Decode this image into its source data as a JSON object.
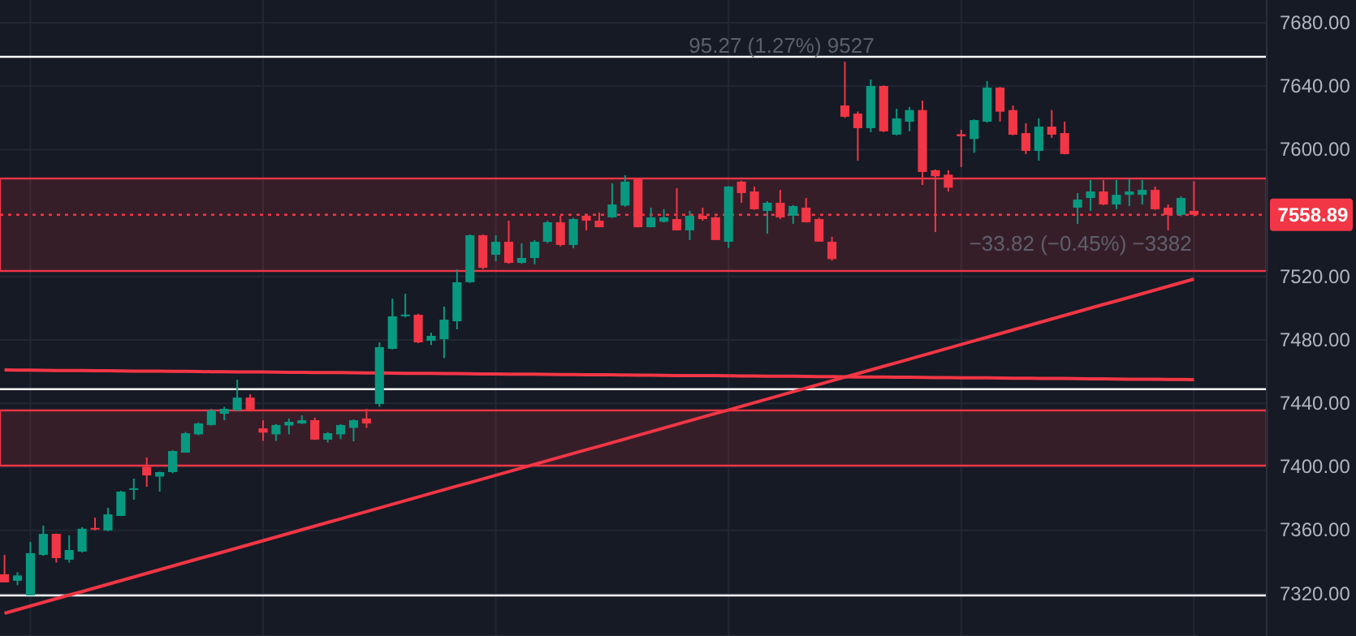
{
  "chart_data": {
    "type": "candlestick",
    "categories": [
      null,
      null,
      null,
      null,
      null,
      null,
      null,
      null,
      null,
      null,
      null,
      null,
      null,
      null,
      null,
      null,
      null,
      null,
      null,
      null,
      null,
      null,
      null,
      null,
      null,
      null,
      null,
      null,
      null,
      null,
      null,
      null,
      null,
      null,
      null,
      null,
      null,
      null,
      null,
      null,
      null,
      null,
      null,
      null,
      null,
      null,
      null,
      null,
      null,
      null,
      null,
      null,
      null,
      null,
      null,
      null,
      null,
      null,
      null,
      null,
      null,
      null,
      null,
      null,
      null,
      null,
      null,
      null,
      null,
      null,
      null,
      null,
      null,
      null,
      null,
      null,
      null,
      null,
      null,
      null,
      null,
      null,
      null,
      null,
      null,
      null,
      null,
      null,
      null,
      null,
      null,
      null,
      null
    ],
    "ohlc": [
      [
        7332.3,
        7344.5,
        7327.2,
        7327.2
      ],
      [
        7328.2,
        7333.6,
        7325.4,
        7331.6
      ],
      [
        7319.0,
        7352.7,
        7319.0,
        7345.6
      ],
      [
        7344.5,
        7363.0,
        7344.0,
        7357.8
      ],
      [
        7357.8,
        7358.0,
        7339.7,
        7342.5
      ],
      [
        7341.5,
        7356.8,
        7339.7,
        7347.6
      ],
      [
        7346.6,
        7362.0,
        7346.0,
        7361.0
      ],
      [
        7361.5,
        7368.0,
        7360.0,
        7360.5
      ],
      [
        7359.9,
        7374.2,
        7359.5,
        7370.1
      ],
      [
        7369.1,
        7385.0,
        7369.0,
        7384.4
      ],
      [
        7386.0,
        7392.6,
        7379.3,
        7386.5
      ],
      [
        7400.1,
        7405.9,
        7387.5,
        7394.6
      ],
      [
        7393.9,
        7397.0,
        7384.4,
        7396.7
      ],
      [
        7396.7,
        7410.5,
        7396.0,
        7410.0
      ],
      [
        7409.0,
        7422.0,
        7409.0,
        7421.2
      ],
      [
        7420.5,
        7428.0,
        7420.0,
        7427.4
      ],
      [
        7426.4,
        7436.6,
        7426.0,
        7435.6
      ],
      [
        7433.5,
        7437.9,
        7429.4,
        7436.6
      ],
      [
        7435.6,
        7455.0,
        7435.0,
        7443.7
      ],
      [
        7443.7,
        7445.8,
        7435.0,
        7435.6
      ],
      [
        7424.3,
        7429.4,
        7416.4,
        7421.6
      ],
      [
        7420.5,
        7427.0,
        7416.4,
        7426.4
      ],
      [
        7426.1,
        7430.5,
        7420.5,
        7428.4
      ],
      [
        7427.4,
        7432.5,
        7427.0,
        7429.4
      ],
      [
        7429.4,
        7431.0,
        7417.0,
        7417.2
      ],
      [
        7417.2,
        7422.0,
        7415.4,
        7421.2
      ],
      [
        7420.5,
        7427.0,
        7417.5,
        7426.4
      ],
      [
        7424.6,
        7430.0,
        7416.1,
        7429.4
      ],
      [
        7430.5,
        7436.6,
        7424.6,
        7427.4
      ],
      [
        7439.6,
        7478.5,
        7437.9,
        7475.5
      ],
      [
        7474.4,
        7506.1,
        7474.0,
        7494.9
      ],
      [
        7495.5,
        7509.2,
        7494.2,
        7496.0
      ],
      [
        7495.9,
        7496.5,
        7478.0,
        7478.5
      ],
      [
        7479.5,
        7484.6,
        7476.8,
        7482.6
      ],
      [
        7480.5,
        7501.0,
        7468.6,
        7492.8
      ],
      [
        7491.8,
        7524.5,
        7486.7,
        7516.4
      ],
      [
        7516.4,
        7546.5,
        7516.0,
        7546.0
      ],
      [
        7546.0,
        7546.5,
        7524.5,
        7525.5
      ],
      [
        7533.7,
        7546.0,
        7529.6,
        7541.9
      ],
      [
        7541.9,
        7555.2,
        7528.0,
        7528.6
      ],
      [
        7528.6,
        7540.9,
        7528.0,
        7531.7
      ],
      [
        7531.7,
        7543.0,
        7527.6,
        7541.9
      ],
      [
        7541.9,
        7555.2,
        7541.0,
        7554.2
      ],
      [
        7554.2,
        7558.3,
        7539.0,
        7539.9
      ],
      [
        7539.9,
        7557.0,
        7537.8,
        7556.2
      ],
      [
        7558.3,
        7559.0,
        7549.1,
        7555.2
      ],
      [
        7555.2,
        7560.3,
        7551.0,
        7551.1
      ],
      [
        7557.3,
        7578.7,
        7557.0,
        7565.4
      ],
      [
        7564.7,
        7583.8,
        7564.0,
        7579.8
      ],
      [
        7581.5,
        7582.0,
        7551.0,
        7551.1
      ],
      [
        7551.1,
        7563.4,
        7551.0,
        7557.3
      ],
      [
        7554.5,
        7562.4,
        7554.0,
        7557.3
      ],
      [
        7556.2,
        7575.7,
        7549.0,
        7549.1
      ],
      [
        7549.1,
        7561.4,
        7543.0,
        7558.3
      ],
      [
        7558.3,
        7563.4,
        7555.2,
        7556.2
      ],
      [
        7557.3,
        7558.0,
        7543.0,
        7543.0
      ],
      [
        7541.9,
        7577.0,
        7538.0,
        7576.7
      ],
      [
        7579.8,
        7580.5,
        7566.5,
        7572.6
      ],
      [
        7573.6,
        7576.7,
        7562.0,
        7562.4
      ],
      [
        7561.4,
        7567.5,
        7547.0,
        7566.5
      ],
      [
        7566.5,
        7574.6,
        7556.2,
        7557.3
      ],
      [
        7558.3,
        7565.0,
        7553.2,
        7564.4
      ],
      [
        7563.4,
        7569.5,
        7554.0,
        7554.2
      ],
      [
        7556.2,
        7557.0,
        7542.0,
        7542.0
      ],
      [
        7541.9,
        7545.0,
        7530.0,
        7531.0
      ],
      [
        7627.8,
        7655.4,
        7620.0,
        7620.7
      ],
      [
        7622.7,
        7624.0,
        7593.0,
        7613.5
      ],
      [
        7613.5,
        7644.2,
        7611.0,
        7640.1
      ],
      [
        7640.1,
        7640.5,
        7611.0,
        7611.5
      ],
      [
        7609.4,
        7625.8,
        7609.0,
        7619.7
      ],
      [
        7617.6,
        7626.8,
        7611.5,
        7624.9
      ],
      [
        7624.9,
        7630.9,
        7577.7,
        7585.9
      ],
      [
        7587.0,
        7587.5,
        7548.0,
        7583.2
      ],
      [
        7584.2,
        7587.0,
        7573.6,
        7576.0
      ],
      [
        7609.7,
        7612.5,
        7589.0,
        7608.4
      ],
      [
        7606.7,
        7619.0,
        7598.0,
        7618.6
      ],
      [
        7617.6,
        7643.2,
        7617.0,
        7639.1
      ],
      [
        7639.1,
        7639.5,
        7617.6,
        7623.9
      ],
      [
        7624.9,
        7627.8,
        7609.0,
        7609.4
      ],
      [
        7610.4,
        7616.6,
        7597.2,
        7599.2
      ],
      [
        7599.2,
        7619.7,
        7593.0,
        7614.5
      ],
      [
        7614.5,
        7624.9,
        7607.4,
        7609.4
      ],
      [
        7610.4,
        7617.6,
        7597.0,
        7597.2
      ],
      [
        7563.4,
        7572.6,
        7553.2,
        7568.5
      ],
      [
        7569.5,
        7580.8,
        7561.4,
        7573.6
      ],
      [
        7573.6,
        7580.8,
        7565.0,
        7565.4
      ],
      [
        7565.4,
        7580.8,
        7562.4,
        7571.5
      ],
      [
        7571.5,
        7581.8,
        7564.4,
        7573.6
      ],
      [
        7571.5,
        7580.8,
        7565.4,
        7574.6
      ],
      [
        7574.6,
        7576.7,
        7562.0,
        7562.4
      ],
      [
        7563.4,
        7565.4,
        7549.1,
        7558.9
      ],
      [
        7558.9,
        7570.5,
        7558.0,
        7569.5
      ],
      [
        7561.4,
        7580.0,
        7558.0,
        7558.89
      ]
    ],
    "colors": [
      "#f23645",
      "#089981",
      "#089981",
      "#089981",
      "#f23645",
      "#089981",
      "#089981",
      "#f23645",
      "#089981",
      "#089981",
      "#089981",
      "#f23645",
      "#089981",
      "#089981",
      "#089981",
      "#089981",
      "#089981",
      "#089981",
      "#089981",
      "#f23645",
      "#f23645",
      "#089981",
      "#089981",
      "#089981",
      "#f23645",
      "#089981",
      "#089981",
      "#089981",
      "#f23645",
      "#089981",
      "#089981",
      "#089981",
      "#f23645",
      "#089981",
      "#089981",
      "#089981",
      "#089981",
      "#f23645",
      "#089981",
      "#f23645",
      "#089981",
      "#089981",
      "#089981",
      "#f23645",
      "#089981",
      "#f23645",
      "#f23645",
      "#089981",
      "#089981",
      "#f23645",
      "#089981",
      "#089981",
      "#f23645",
      "#089981",
      "#f23645",
      "#f23645",
      "#089981",
      "#f23645",
      "#f23645",
      "#089981",
      "#f23645",
      "#089981",
      "#f23645",
      "#f23645",
      "#f23645",
      "#f23645",
      "#f23645",
      "#089981",
      "#f23645",
      "#089981",
      "#089981",
      "#f23645",
      "#f23645",
      "#f23645",
      "#f23645",
      "#089981",
      "#089981",
      "#f23645",
      "#f23645",
      "#f23645",
      "#089981",
      "#f23645",
      "#f23645",
      "#089981",
      "#089981",
      "#f23645",
      "#089981",
      "#089981",
      "#089981",
      "#f23645",
      "#f23645",
      "#089981",
      "#f23645"
    ],
    "series": [
      {
        "type": "line",
        "color": "#f23645",
        "values": [
          7307.7,
          7310.0,
          7312.3,
          7314.6,
          7316.9,
          7319.2,
          7321.4,
          7323.7,
          7326.0,
          7328.3,
          7330.6,
          7332.9,
          7335.2,
          7337.5,
          7339.8,
          7342.1,
          7344.3,
          7346.6,
          7348.9,
          7351.2,
          7353.5,
          7355.8,
          7358.1,
          7360.4,
          7362.7,
          7365.0,
          7367.2,
          7369.5,
          7371.8,
          7374.1,
          7376.4,
          7378.7,
          7381.0,
          7383.3,
          7385.6,
          7387.9,
          7390.1,
          7392.4,
          7394.7,
          7397.0,
          7399.3,
          7401.6,
          7403.9,
          7406.2,
          7408.5,
          7410.8,
          7413.0,
          7415.3,
          7417.6,
          7419.9,
          7422.2,
          7424.5,
          7426.8,
          7429.1,
          7431.4,
          7433.7,
          7435.9,
          7438.2,
          7440.5,
          7442.8,
          7445.1,
          7447.4,
          7449.7,
          7452.0,
          7454.3,
          7456.6,
          7458.8,
          7461.1,
          7463.4,
          7465.7,
          7468.0,
          7470.3,
          7472.6,
          7474.9,
          7477.2,
          7479.5,
          7481.7,
          7484.0,
          7486.3,
          7488.6,
          7490.9,
          7493.2,
          7495.5,
          7497.8,
          7500.1,
          7502.4,
          7504.6,
          7506.9,
          7509.2,
          7511.5,
          7513.8,
          7516.1,
          7518.4
        ]
      },
      {
        "type": "line",
        "color": "#f23645",
        "values": [
          7461.1,
          7461.0,
          7461.0,
          7460.9,
          7460.8,
          7460.8,
          7460.7,
          7460.6,
          7460.6,
          7460.5,
          7460.4,
          7460.4,
          7460.3,
          7460.2,
          7460.2,
          7460.1,
          7460.0,
          7460.0,
          7459.9,
          7459.8,
          7459.8,
          7459.7,
          7459.6,
          7459.6,
          7459.5,
          7459.4,
          7459.4,
          7459.3,
          7459.2,
          7459.2,
          7459.1,
          7459.0,
          7459.0,
          7458.9,
          7458.8,
          7458.8,
          7458.7,
          7458.6,
          7458.6,
          7458.5,
          7458.4,
          7458.4,
          7458.3,
          7458.2,
          7458.2,
          7458.1,
          7458.0,
          7458.0,
          7457.9,
          7457.8,
          7457.8,
          7457.7,
          7457.6,
          7457.6,
          7457.5,
          7457.5,
          7457.4,
          7457.3,
          7457.3,
          7457.2,
          7457.1,
          7457.1,
          7457.0,
          7456.9,
          7456.9,
          7456.8,
          7456.7,
          7456.7,
          7456.6,
          7456.5,
          7456.5,
          7456.4,
          7456.3,
          7456.3,
          7456.2,
          7456.1,
          7456.1,
          7456.0,
          7455.9,
          7455.9,
          7455.8,
          7455.7,
          7455.7,
          7455.6,
          7455.5,
          7455.5,
          7455.4,
          7455.3,
          7455.3,
          7455.2,
          7455.1,
          7455.1,
          7455.0
        ]
      }
    ],
    "ylim": [
      7293.4,
      7694.3
    ],
    "yticks": [
      {
        "value": 7320,
        "label": "7320.00"
      },
      {
        "value": 7360,
        "label": "7360.00"
      },
      {
        "value": 7400,
        "label": "7400.00"
      },
      {
        "value": 7440,
        "label": "7440.00"
      },
      {
        "value": 7480,
        "label": "7480.00"
      },
      {
        "value": 7520,
        "label": "7520.00"
      },
      {
        "value": 7600,
        "label": "7600.00"
      },
      {
        "value": 7640,
        "label": "7640.00"
      },
      {
        "value": 7680,
        "label": "7680.00"
      }
    ],
    "grid": true,
    "tick_labels": "y",
    "bands": [
      {
        "axis": "y",
        "from": 7523.5,
        "to": 7581.8,
        "color": "#f23645"
      },
      {
        "axis": "y",
        "from": 7400.8,
        "to": 7435.6,
        "color": "#f23645"
      }
    ],
    "ref_lines": [
      {
        "axis": "y",
        "value": 7658.5,
        "color": "#ffffff"
      },
      {
        "axis": "y",
        "value": 7449.0,
        "color": "#ffffff"
      },
      {
        "axis": "y",
        "value": 7319.0,
        "color": "#ffffff"
      },
      {
        "axis": "y",
        "value": 7558.89,
        "label": "7558.89",
        "color": "#f23645",
        "line_style": "dotted"
      }
    ],
    "annotations": [
      "95.27 (1.27%) 9527",
      "−33.82 (−0.45%) −3382"
    ]
  }
}
